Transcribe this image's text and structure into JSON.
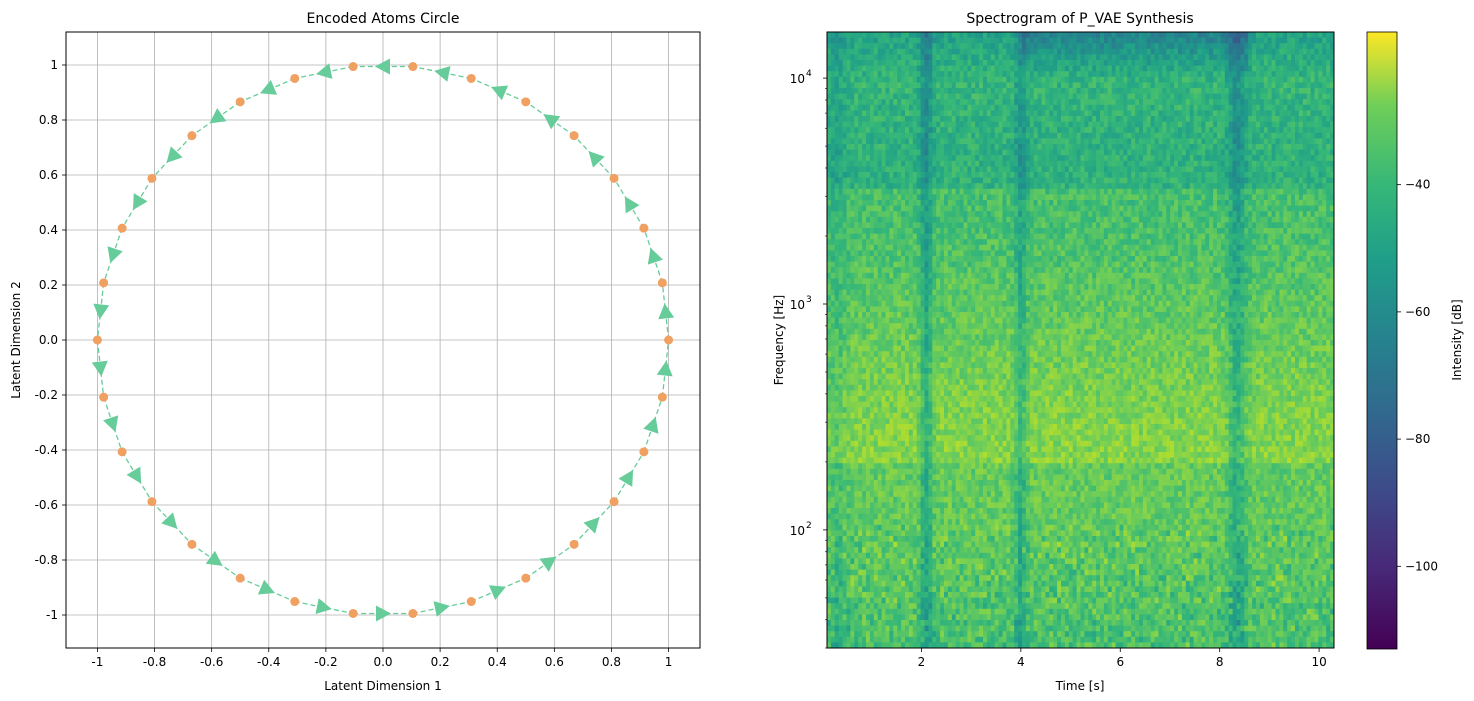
{
  "chart_data": [
    {
      "type": "scatter",
      "title": "Encoded Atoms Circle",
      "xlabel": "Latent Dimension 1",
      "ylabel": "Latent Dimension 2",
      "xlim": [
        -1.11,
        1.11
      ],
      "ylim": [
        -1.12,
        1.12
      ],
      "grid": true,
      "xticks": [
        -1,
        -0.8,
        -0.6,
        -0.4,
        -0.2,
        0,
        0.2,
        0.4,
        0.6,
        0.8,
        1
      ],
      "xtick_labels": [
        "-1",
        "-0.8",
        "-0.6",
        "-0.4",
        "-0.2",
        "0.0",
        "0.2",
        "0.4",
        "0.6",
        "0.8",
        "1"
      ],
      "yticks": [
        1,
        0.8,
        0.6,
        0.4,
        0.2,
        0,
        -0.2,
        -0.4,
        -0.6,
        -0.8,
        -1
      ],
      "ytick_labels": [
        "1",
        "0.8",
        "0.6",
        "0.4",
        "0.2",
        "0.0",
        "-0.2",
        "-0.4",
        "-0.6",
        "-0.8",
        "-1"
      ],
      "series": [
        {
          "name": "atoms",
          "marker": "circle",
          "color": "#f0a060",
          "num_points": 30,
          "start_angle_deg": 0,
          "path_style": "dashed with direction arrows",
          "arrow_color": "#66cc99"
        }
      ]
    },
    {
      "type": "heatmap",
      "title": "Spectrogram of P_VAE Synthesis",
      "xlabel": "Time [s]",
      "ylabel": "Frequency [Hz]",
      "xlim": [
        0.1,
        10.3
      ],
      "ylim": [
        30,
        16000
      ],
      "yscale": "log",
      "xticks": [
        2,
        4,
        6,
        8,
        10
      ],
      "xtick_labels": [
        "2",
        "4",
        "6",
        "8",
        "10"
      ],
      "yticks": [
        100,
        1000,
        10000
      ],
      "ytick_labels": [
        {
          "base": "10",
          "exp": "2"
        },
        {
          "base": "10",
          "exp": "3"
        },
        {
          "base": "10",
          "exp": "4"
        }
      ],
      "colormap": "viridis",
      "colorbar": {
        "label": "Intensity [dB]",
        "range": [
          -113,
          -16
        ],
        "ticks": [
          -40,
          -60,
          -80,
          -100
        ],
        "tick_labels": [
          "−40",
          "−60",
          "−80",
          "−100"
        ]
      }
    }
  ]
}
